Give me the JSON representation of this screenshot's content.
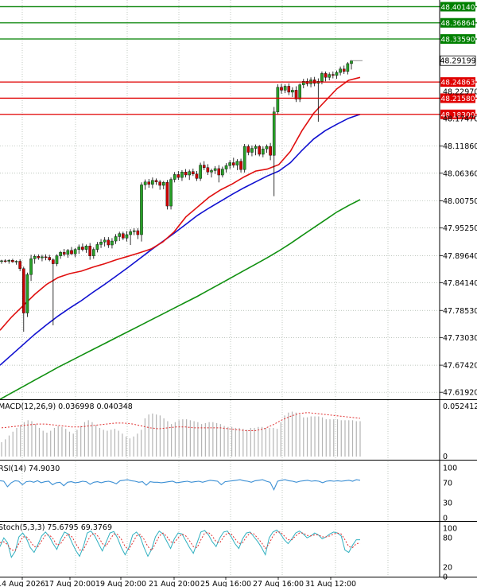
{
  "colors": {
    "background": "#ffffff",
    "grid": "#a8b4a8",
    "bull_candle": "#27a027",
    "bear_candle": "#cc0000",
    "ma_fast": "#e01010",
    "ma_mid": "#1010d0",
    "ma_slow": "#109010",
    "resistance": "#008000",
    "support": "#e00000",
    "macd_hist": "#b4b4b4",
    "macd_signal": "#e03030",
    "rsi_line": "#3b8fd4",
    "stoch_main": "#30b0c0",
    "stoch_signal": "#e03030",
    "current_price_box": "#000000"
  },
  "chart_data": {
    "type": "candlestick",
    "price_ticks": [
      "48.11860",
      "48.06360",
      "48.00750",
      "47.95250",
      "47.89640",
      "47.84140",
      "47.78530",
      "47.73030",
      "47.67420",
      "47.61920"
    ],
    "hidden_ticks": [
      "48.22970",
      "48.17470"
    ],
    "x_ticks": [
      "14 Aug 2026",
      "17 Aug 20:00",
      "19 Aug 20:00",
      "21 Aug 20:00",
      "25 Aug 16:00",
      "27 Aug 16:00",
      "31 Aug 12:00"
    ],
    "ylim": [
      47.605,
      48.415
    ],
    "current_price": "48.29199",
    "resistance_levels": [
      {
        "label": "48.40140",
        "value": 48.4014
      },
      {
        "label": "48.36864",
        "value": 48.36864
      },
      {
        "label": "48.33590",
        "value": 48.3359
      }
    ],
    "support_levels": [
      {
        "label": "48.24863",
        "value": 48.24863
      },
      {
        "label": "48.21580",
        "value": 48.2158
      },
      {
        "label": "48.18300",
        "value": 48.183
      }
    ],
    "candles": [
      [
        47.885,
        47.888,
        47.88,
        47.886
      ],
      [
        47.886,
        47.889,
        47.882,
        47.885
      ],
      [
        47.885,
        47.889,
        47.88,
        47.887
      ],
      [
        47.887,
        47.89,
        47.882,
        47.884
      ],
      [
        47.884,
        47.887,
        47.878,
        47.885
      ],
      [
        47.885,
        47.889,
        47.865,
        47.87
      ],
      [
        47.87,
        47.874,
        47.742,
        47.78
      ],
      [
        47.78,
        47.862,
        47.772,
        47.858
      ],
      [
        47.858,
        47.898,
        47.845,
        47.89
      ],
      [
        47.89,
        47.899,
        47.88,
        47.895
      ],
      [
        47.895,
        47.899,
        47.888,
        47.892
      ],
      [
        47.892,
        47.898,
        47.885,
        47.894
      ],
      [
        47.894,
        47.899,
        47.887,
        47.893
      ],
      [
        47.893,
        47.898,
        47.885,
        47.888
      ],
      [
        47.888,
        47.891,
        47.755,
        47.88
      ],
      [
        47.88,
        47.899,
        47.875,
        47.896
      ],
      [
        47.896,
        47.906,
        47.89,
        47.903
      ],
      [
        47.903,
        47.91,
        47.895,
        47.899
      ],
      [
        47.899,
        47.91,
        47.892,
        47.907
      ],
      [
        47.907,
        47.914,
        47.898,
        47.9
      ],
      [
        47.9,
        47.912,
        47.893,
        47.909
      ],
      [
        47.909,
        47.919,
        47.9,
        47.914
      ],
      [
        47.914,
        47.921,
        47.905,
        47.909
      ],
      [
        47.909,
        47.919,
        47.902,
        47.916
      ],
      [
        47.916,
        47.922,
        47.888,
        47.896
      ],
      [
        47.896,
        47.913,
        47.89,
        47.909
      ],
      [
        47.909,
        47.924,
        47.903,
        47.919
      ],
      [
        47.919,
        47.93,
        47.912,
        47.924
      ],
      [
        47.924,
        47.934,
        47.915,
        47.928
      ],
      [
        47.928,
        47.934,
        47.912,
        47.918
      ],
      [
        47.918,
        47.932,
        47.911,
        47.926
      ],
      [
        47.926,
        47.94,
        47.92,
        47.935
      ],
      [
        47.935,
        47.945,
        47.926,
        47.941
      ],
      [
        47.941,
        47.945,
        47.928,
        47.932
      ],
      [
        47.932,
        47.946,
        47.925,
        47.939
      ],
      [
        47.939,
        47.95,
        47.918,
        47.945
      ],
      [
        47.945,
        47.952,
        47.938,
        47.947
      ],
      [
        47.947,
        47.952,
        47.93,
        47.939
      ],
      [
        47.939,
        48.045,
        47.925,
        48.04
      ],
      [
        48.04,
        48.051,
        48.03,
        48.046
      ],
      [
        48.046,
        48.052,
        48.034,
        48.041
      ],
      [
        48.041,
        48.055,
        48.033,
        48.049
      ],
      [
        48.049,
        48.053,
        48.04,
        48.046
      ],
      [
        48.046,
        48.05,
        48.03,
        48.039
      ],
      [
        48.039,
        48.048,
        48.031,
        48.045
      ],
      [
        48.045,
        48.05,
        47.99,
        47.997
      ],
      [
        47.997,
        48.055,
        47.99,
        48.051
      ],
      [
        48.051,
        48.066,
        48.045,
        48.061
      ],
      [
        48.061,
        48.068,
        48.05,
        48.055
      ],
      [
        48.055,
        48.07,
        48.048,
        48.066
      ],
      [
        48.066,
        48.072,
        48.055,
        48.06
      ],
      [
        48.06,
        48.071,
        48.05,
        48.067
      ],
      [
        48.067,
        48.073,
        48.058,
        48.062
      ],
      [
        48.062,
        48.068,
        48.048,
        48.053
      ],
      [
        48.053,
        48.085,
        48.048,
        48.08
      ],
      [
        48.08,
        48.088,
        48.07,
        48.075
      ],
      [
        48.075,
        48.082,
        48.06,
        48.066
      ],
      [
        48.066,
        48.073,
        48.055,
        48.069
      ],
      [
        48.069,
        48.078,
        48.062,
        48.073
      ],
      [
        48.073,
        48.08,
        48.045,
        48.06
      ],
      [
        48.06,
        48.077,
        48.055,
        48.072
      ],
      [
        48.072,
        48.084,
        48.065,
        48.079
      ],
      [
        48.079,
        48.09,
        48.072,
        48.085
      ],
      [
        48.085,
        48.095,
        48.075,
        48.08
      ],
      [
        48.08,
        48.092,
        48.07,
        48.088
      ],
      [
        48.088,
        48.093,
        48.065,
        48.071
      ],
      [
        48.071,
        48.123,
        48.065,
        48.118
      ],
      [
        48.118,
        48.122,
        48.1,
        48.106
      ],
      [
        48.106,
        48.12,
        48.098,
        48.114
      ],
      [
        48.114,
        48.122,
        48.1,
        48.118
      ],
      [
        48.118,
        48.121,
        48.098,
        48.102
      ],
      [
        48.102,
        48.118,
        48.096,
        48.113
      ],
      [
        48.113,
        48.122,
        48.105,
        48.118
      ],
      [
        48.118,
        48.125,
        48.09,
        48.1
      ],
      [
        48.1,
        48.198,
        48.017,
        48.188
      ],
      [
        48.188,
        48.244,
        48.182,
        48.238
      ],
      [
        48.238,
        48.245,
        48.225,
        48.232
      ],
      [
        48.232,
        48.244,
        48.226,
        48.24
      ],
      [
        48.24,
        48.246,
        48.222,
        48.228
      ],
      [
        48.228,
        48.238,
        48.218,
        48.232
      ],
      [
        48.232,
        48.24,
        48.208,
        48.214
      ],
      [
        48.214,
        48.246,
        48.208,
        48.243
      ],
      [
        48.243,
        48.255,
        48.236,
        48.25
      ],
      [
        48.25,
        48.256,
        48.24,
        48.245
      ],
      [
        48.245,
        48.258,
        48.238,
        48.253
      ],
      [
        48.253,
        48.259,
        48.24,
        48.246
      ],
      [
        48.246,
        48.256,
        48.168,
        48.25
      ],
      [
        48.25,
        48.27,
        48.244,
        48.266
      ],
      [
        48.266,
        48.27,
        48.25,
        48.258
      ],
      [
        48.258,
        48.268,
        48.252,
        48.264
      ],
      [
        48.264,
        48.27,
        48.256,
        48.262
      ],
      [
        48.262,
        48.272,
        48.255,
        48.268
      ],
      [
        48.268,
        48.28,
        48.262,
        48.275
      ],
      [
        48.275,
        48.282,
        48.265,
        48.27
      ],
      [
        48.27,
        48.289,
        48.264,
        48.286
      ],
      [
        48.286,
        48.293,
        48.274,
        48.292
      ]
    ],
    "ma_fast": [
      47.745,
      47.772,
      47.795,
      47.818,
      47.838,
      47.852,
      47.86,
      47.865,
      47.873,
      47.88,
      47.888,
      47.895,
      47.902,
      47.91,
      47.924,
      47.945,
      47.975,
      47.995,
      48.015,
      48.03,
      48.042,
      48.056,
      48.068,
      48.072,
      48.081,
      48.108,
      48.15,
      48.185,
      48.21,
      48.235,
      48.252,
      48.258
    ],
    "ma_mid": [
      47.674,
      47.695,
      47.716,
      47.737,
      47.756,
      47.774,
      47.79,
      47.805,
      47.822,
      47.838,
      47.855,
      47.872,
      47.89,
      47.908,
      47.925,
      47.942,
      47.96,
      47.978,
      47.993,
      48.007,
      48.021,
      48.034,
      48.046,
      48.058,
      48.068,
      48.085,
      48.11,
      48.133,
      48.15,
      48.163,
      48.175,
      48.183
    ],
    "ma_slow": [
      47.605,
      47.618,
      47.631,
      47.644,
      47.657,
      47.67,
      47.682,
      47.694,
      47.706,
      47.718,
      47.73,
      47.742,
      47.754,
      47.766,
      47.778,
      47.79,
      47.802,
      47.814,
      47.827,
      47.84,
      47.853,
      47.866,
      47.879,
      47.892,
      47.906,
      47.921,
      47.937,
      47.953,
      47.969,
      47.985,
      47.998,
      48.01
    ],
    "macd": {
      "label": "MACD(12,26,9) 0.036998 0.040348",
      "scale": [
        "0.052412",
        "0"
      ],
      "histogram": [
        0.015,
        0.018,
        0.022,
        0.026,
        0.03,
        0.033,
        0.036,
        0.038,
        0.037,
        0.034,
        0.03,
        0.027,
        0.025,
        0.027,
        0.03,
        0.032,
        0.031,
        0.029,
        0.026,
        0.024,
        0.028,
        0.032,
        0.036,
        0.038,
        0.036,
        0.033,
        0.03,
        0.028,
        0.027,
        0.028,
        0.029,
        0.027,
        0.024,
        0.021,
        0.019,
        0.021,
        0.024,
        0.028,
        0.04,
        0.044,
        0.045,
        0.044,
        0.043,
        0.04,
        0.037,
        0.034,
        0.036,
        0.038,
        0.039,
        0.039,
        0.038,
        0.037,
        0.036,
        0.034,
        0.035,
        0.036,
        0.036,
        0.035,
        0.034,
        0.032,
        0.031,
        0.031,
        0.03,
        0.03,
        0.029,
        0.028,
        0.03,
        0.03,
        0.031,
        0.031,
        0.03,
        0.03,
        0.03,
        0.029,
        0.036,
        0.043,
        0.046,
        0.047,
        0.046,
        0.044,
        0.041,
        0.041,
        0.042,
        0.042,
        0.042,
        0.041,
        0.039,
        0.039,
        0.039,
        0.039,
        0.038,
        0.038,
        0.038,
        0.038,
        0.037,
        0.037
      ],
      "signal": [
        0.03,
        0.031,
        0.032,
        0.033,
        0.034,
        0.034,
        0.033,
        0.032,
        0.031,
        0.031,
        0.032,
        0.033,
        0.034,
        0.035,
        0.035,
        0.034,
        0.032,
        0.03,
        0.029,
        0.03,
        0.031,
        0.031,
        0.03,
        0.03,
        0.03,
        0.03,
        0.029,
        0.028,
        0.027,
        0.027,
        0.029,
        0.033,
        0.038,
        0.042,
        0.045,
        0.046,
        0.045,
        0.044,
        0.043,
        0.042,
        0.041,
        0.04
      ]
    },
    "rsi": {
      "label": "RSI(14) 74.9030",
      "scale": [
        "100",
        "70",
        "30",
        "0"
      ],
      "values": [
        74,
        73,
        62,
        70,
        74,
        73,
        66,
        72,
        73,
        71,
        74,
        70,
        72,
        73,
        66,
        70,
        71,
        64,
        71,
        72,
        70,
        71,
        73,
        72,
        67,
        71,
        72,
        70,
        72,
        73,
        71,
        68,
        74,
        75,
        76,
        74,
        73,
        71,
        72,
        65,
        72,
        71,
        71,
        70,
        71,
        72,
        73,
        70,
        71,
        72,
        73,
        71,
        72,
        73,
        71,
        73,
        75,
        74,
        73,
        66,
        72,
        73,
        74,
        75,
        76,
        74,
        73,
        71,
        74,
        75,
        76,
        73,
        71,
        56,
        73,
        75,
        76,
        74,
        73,
        71,
        73,
        74,
        75,
        73,
        74,
        73,
        70,
        73,
        74,
        73,
        74,
        73,
        74,
        75,
        73,
        76,
        75
      ]
    },
    "stochastic": {
      "label": "Stoch(5,3,3) 75.6795 69.3769",
      "scale": [
        "100",
        "80",
        "20",
        "0"
      ],
      "main": [
        62,
        80,
        70,
        40,
        52,
        82,
        90,
        78,
        60,
        50,
        66,
        84,
        92,
        83,
        68,
        56,
        77,
        92,
        88,
        70,
        54,
        42,
        62,
        90,
        94,
        84,
        68,
        53,
        71,
        90,
        93,
        80,
        60,
        45,
        60,
        86,
        92,
        82,
        60,
        42,
        56,
        82,
        94,
        88,
        73,
        58,
        78,
        90,
        88,
        74,
        60,
        48,
        70,
        92,
        95,
        86,
        72,
        62,
        80,
        92,
        94,
        82,
        68,
        58,
        78,
        90,
        92,
        82,
        72,
        60,
        45,
        80,
        92,
        96,
        88,
        76,
        68,
        78,
        90,
        94,
        88,
        80,
        84,
        90,
        86,
        78,
        82,
        88,
        92,
        90,
        84,
        55,
        50,
        65,
        76,
        76
      ],
      "signal": [
        70,
        72,
        66,
        55,
        54,
        68,
        82,
        82,
        73,
        62,
        62,
        74,
        85,
        86,
        78,
        65,
        68,
        80,
        88,
        82,
        68,
        55,
        55,
        72,
        86,
        90,
        82,
        68,
        63,
        76,
        88,
        87,
        77,
        62,
        56,
        70,
        84,
        87,
        77,
        62,
        54,
        68,
        84,
        90,
        83,
        72,
        70,
        80,
        88,
        84,
        74,
        62,
        60,
        76,
        90,
        91,
        84,
        72,
        70,
        82,
        90,
        88,
        78,
        68,
        70,
        82,
        90,
        88,
        79,
        70,
        58,
        68,
        84,
        92,
        92,
        84,
        76,
        76,
        84,
        90,
        90,
        85,
        84,
        86,
        86,
        82,
        82,
        84,
        88,
        90,
        88,
        76,
        62,
        60,
        68,
        69
      ]
    }
  }
}
